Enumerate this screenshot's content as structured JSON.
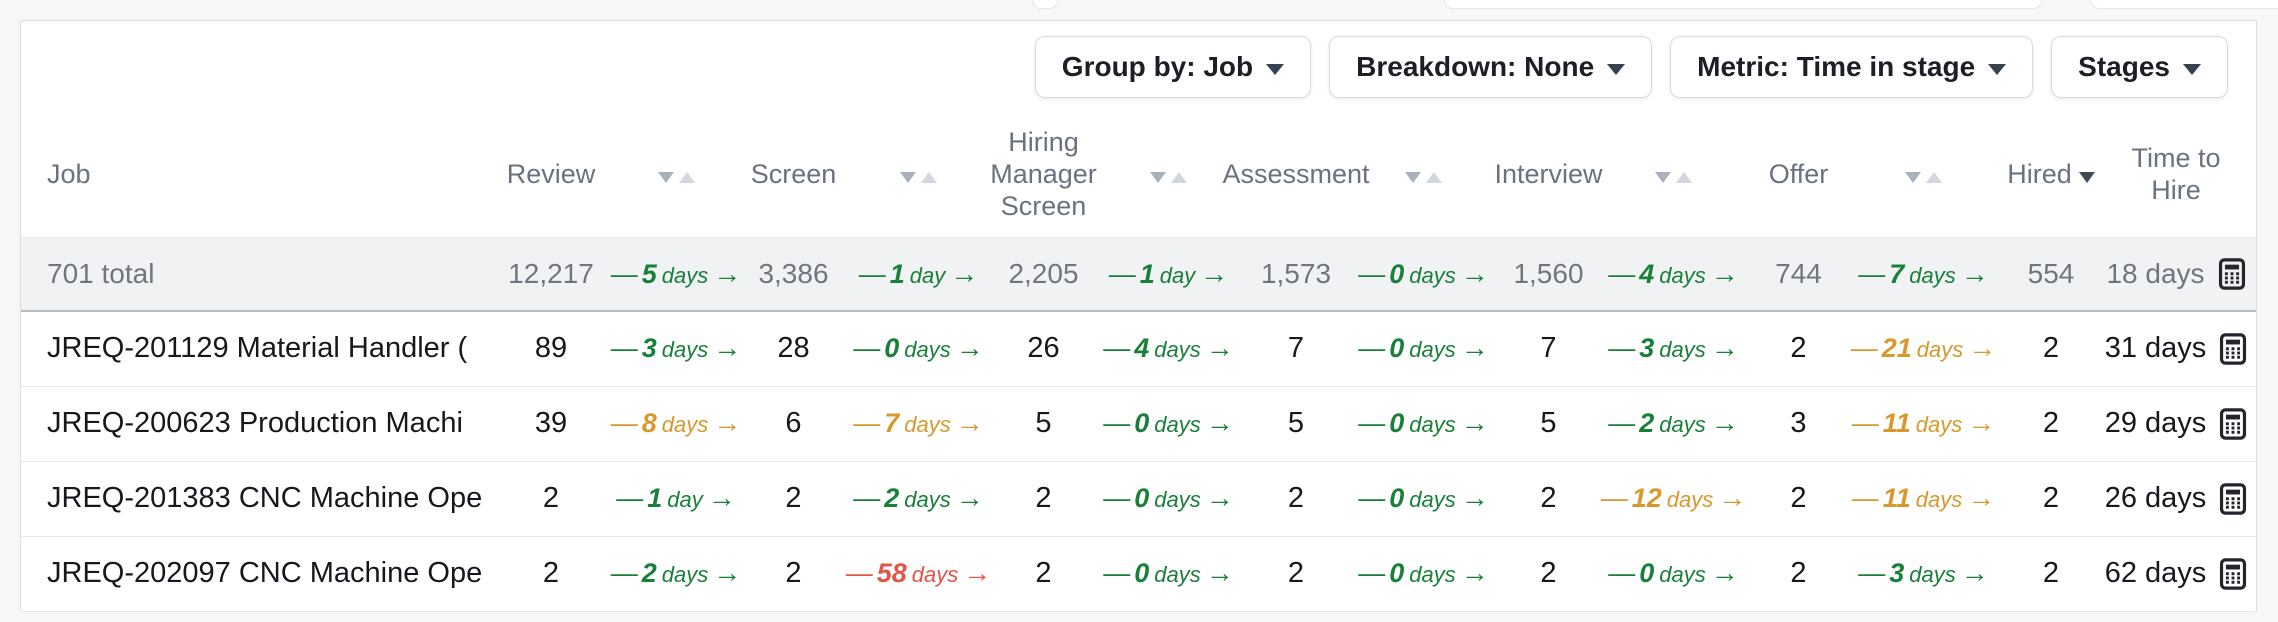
{
  "toolbar": {
    "buttons": [
      {
        "label": "Group by: Job"
      },
      {
        "label": "Breakdown: None"
      },
      {
        "label": "Metric: Time in stage"
      },
      {
        "label": "Stages"
      }
    ]
  },
  "colors": {
    "green": "#188038",
    "orange": "#d7992d",
    "red": "#e25649"
  },
  "table": {
    "headers": {
      "job": "Job",
      "review": "Review",
      "screen": "Screen",
      "hiring_manager_screen": "Hiring Manager Screen",
      "assessment": "Assessment",
      "interview": "Interview",
      "offer": "Offer",
      "hired": "Hired",
      "time_to_hire": "Time to Hire",
      "sorted_by": "Hired",
      "sort_direction": "desc"
    },
    "total": {
      "label": "701 total",
      "counts": [
        "12,217",
        "3,386",
        "2,205",
        "1,573",
        "1,560",
        "744",
        "554"
      ],
      "transitions": [
        {
          "value": "5",
          "unit": "days",
          "color": "green"
        },
        {
          "value": "1",
          "unit": "day",
          "color": "green"
        },
        {
          "value": "1",
          "unit": "day",
          "color": "green"
        },
        {
          "value": "0",
          "unit": "days",
          "color": "green"
        },
        {
          "value": "4",
          "unit": "days",
          "color": "green"
        },
        {
          "value": "7",
          "unit": "days",
          "color": "green"
        }
      ],
      "time_to_hire": "18 days"
    },
    "rows": [
      {
        "job": "JREQ-201129 Material Handler (",
        "counts": [
          "89",
          "28",
          "26",
          "7",
          "7",
          "2",
          "2"
        ],
        "transitions": [
          {
            "value": "3",
            "unit": "days",
            "color": "green"
          },
          {
            "value": "0",
            "unit": "days",
            "color": "green"
          },
          {
            "value": "4",
            "unit": "days",
            "color": "green"
          },
          {
            "value": "0",
            "unit": "days",
            "color": "green"
          },
          {
            "value": "3",
            "unit": "days",
            "color": "green"
          },
          {
            "value": "21",
            "unit": "days",
            "color": "orange"
          }
        ],
        "time_to_hire": "31 days"
      },
      {
        "job": "JREQ-200623 Production Machi",
        "counts": [
          "39",
          "6",
          "5",
          "5",
          "5",
          "3",
          "2"
        ],
        "transitions": [
          {
            "value": "8",
            "unit": "days",
            "color": "orange"
          },
          {
            "value": "7",
            "unit": "days",
            "color": "orange"
          },
          {
            "value": "0",
            "unit": "days",
            "color": "green"
          },
          {
            "value": "0",
            "unit": "days",
            "color": "green"
          },
          {
            "value": "2",
            "unit": "days",
            "color": "green"
          },
          {
            "value": "11",
            "unit": "days",
            "color": "orange"
          }
        ],
        "time_to_hire": "29 days"
      },
      {
        "job": "JREQ-201383 CNC Machine Ope",
        "counts": [
          "2",
          "2",
          "2",
          "2",
          "2",
          "2",
          "2"
        ],
        "transitions": [
          {
            "value": "1",
            "unit": "day",
            "color": "green"
          },
          {
            "value": "2",
            "unit": "days",
            "color": "green"
          },
          {
            "value": "0",
            "unit": "days",
            "color": "green"
          },
          {
            "value": "0",
            "unit": "days",
            "color": "green"
          },
          {
            "value": "12",
            "unit": "days",
            "color": "orange"
          },
          {
            "value": "11",
            "unit": "days",
            "color": "orange"
          }
        ],
        "time_to_hire": "26 days"
      },
      {
        "job": "JREQ-202097 CNC Machine Ope",
        "counts": [
          "2",
          "2",
          "2",
          "2",
          "2",
          "2",
          "2"
        ],
        "transitions": [
          {
            "value": "2",
            "unit": "days",
            "color": "green"
          },
          {
            "value": "58",
            "unit": "days",
            "color": "red"
          },
          {
            "value": "0",
            "unit": "days",
            "color": "green"
          },
          {
            "value": "0",
            "unit": "days",
            "color": "green"
          },
          {
            "value": "0",
            "unit": "days",
            "color": "green"
          },
          {
            "value": "3",
            "unit": "days",
            "color": "green"
          }
        ],
        "time_to_hire": "62 days"
      }
    ]
  }
}
